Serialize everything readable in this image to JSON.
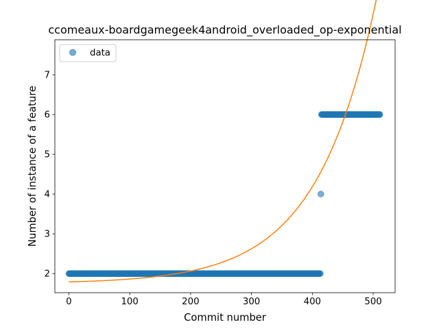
{
  "chart_data": {
    "type": "scatter",
    "title": "ccomeaux-boardgamegeek4android_overloaded_op-exponential",
    "xlabel": "Commit number",
    "ylabel": "Number of instance of a feature",
    "xlim": [
      -23,
      536
    ],
    "ylim": [
      1.52,
      7.88
    ],
    "xticks": [
      0,
      100,
      200,
      300,
      400,
      500
    ],
    "yticks": [
      2,
      3,
      4,
      5,
      6,
      7
    ],
    "grid": false,
    "legend": {
      "position": "top-left",
      "entries": [
        "data"
      ]
    },
    "series": [
      {
        "name": "data",
        "kind": "scatter",
        "color": "#1f77b4",
        "segments": [
          {
            "x_start": 0,
            "x_end": 413,
            "step": 1,
            "y": 2
          },
          {
            "x_start": 414,
            "x_end": 414,
            "step": 1,
            "y": 4
          },
          {
            "x_start": 415,
            "x_end": 511,
            "step": 1,
            "y": 6
          }
        ]
      },
      {
        "kind": "line",
        "color": "#ff7f0e",
        "function": "exponential",
        "params": {
          "a": 0.0405,
          "b": 0.01024,
          "c": 1.75
        },
        "x_range": [
          0,
          511
        ]
      }
    ]
  }
}
